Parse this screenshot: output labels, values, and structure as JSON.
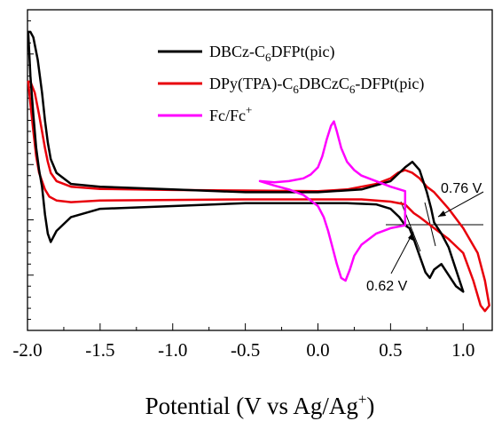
{
  "chart_data": {
    "type": "line",
    "xlabel": "Potential (V vs Ag/Ag",
    "xlabel_sup": "+",
    "xlabel_end": ")",
    "ylabel": "",
    "xlim": [
      -2.0,
      1.2
    ],
    "x_ticks": [
      -2.0,
      -1.5,
      -1.0,
      -0.5,
      0.0,
      0.5,
      1.0
    ],
    "x_tick_labels": [
      "-2.0",
      "-1.5",
      "-1.0",
      "-0.5",
      "0.0",
      "0.5",
      "1.0"
    ],
    "ylim": [
      -2.4,
      3.4
    ],
    "grid": false,
    "legend_position": "top-right",
    "series": [
      {
        "name": "DBCz-C6DFPt(pic)",
        "legend_parts": [
          [
            "DBCz-C",
            "n"
          ],
          [
            "6",
            "sub"
          ],
          [
            "DFPt(pic)",
            "n"
          ]
        ],
        "color": "#000000",
        "x": [
          -1.995,
          -1.98,
          -1.96,
          -1.94,
          -1.92,
          -1.9,
          -1.88,
          -1.86,
          -1.84,
          -1.8,
          -1.7,
          -1.5,
          -1.0,
          -0.5,
          0.0,
          0.2,
          0.4,
          0.5,
          0.56,
          0.6,
          0.63,
          0.66,
          0.7,
          0.74,
          0.77,
          0.8,
          0.85,
          0.9,
          0.95,
          1.0,
          1.0,
          0.95,
          0.9,
          0.85,
          0.8,
          0.78,
          0.75,
          0.7,
          0.65,
          0.6,
          0.5,
          0.3,
          0.0,
          -0.5,
          -1.0,
          -1.5,
          -1.7,
          -1.8,
          -1.84,
          -1.86,
          -1.88,
          -1.9,
          -1.93,
          -1.96,
          -1.98,
          -1.995
        ],
        "y": [
          3.0,
          2.2,
          1.5,
          0.9,
          0.5,
          0.2,
          -0.3,
          -0.65,
          -0.8,
          -0.6,
          -0.35,
          -0.2,
          -0.15,
          -0.1,
          -0.1,
          -0.1,
          -0.12,
          -0.2,
          -0.35,
          -0.5,
          -0.55,
          -0.75,
          -1.05,
          -1.35,
          -1.45,
          -1.3,
          -1.2,
          -1.4,
          -1.6,
          -1.7,
          -1.7,
          -1.3,
          -0.9,
          -0.65,
          -0.45,
          -0.2,
          0.1,
          0.5,
          0.65,
          0.55,
          0.3,
          0.15,
          0.1,
          0.1,
          0.15,
          0.2,
          0.25,
          0.45,
          0.7,
          1.0,
          1.4,
          1.9,
          2.5,
          2.9,
          3.0,
          3.0
        ]
      },
      {
        "name": "DPy(TPA)-C6DBCzC6-DFPt(pic)",
        "legend_parts": [
          [
            "DPy(TPA)-C",
            "n"
          ],
          [
            "6",
            "sub"
          ],
          [
            "DBCzC",
            "n"
          ],
          [
            "6",
            "sub"
          ],
          [
            "-DFPt(pic)",
            "n"
          ]
        ],
        "color": "#e8000b",
        "x": [
          -1.995,
          -1.98,
          -1.96,
          -1.94,
          -1.92,
          -1.9,
          -1.88,
          -1.85,
          -1.8,
          -1.7,
          -1.5,
          -1.0,
          -0.5,
          0.0,
          0.3,
          0.5,
          0.6,
          0.63,
          0.66,
          0.7,
          0.75,
          0.8,
          0.9,
          1.0,
          1.07,
          1.12,
          1.15,
          1.18,
          1.18,
          1.15,
          1.1,
          1.0,
          0.9,
          0.8,
          0.75,
          0.7,
          0.65,
          0.6,
          0.55,
          0.5,
          0.4,
          0.2,
          0.0,
          -0.5,
          -1.0,
          -1.5,
          -1.7,
          -1.8,
          -1.84,
          -1.86,
          -1.88,
          -1.9,
          -1.92,
          -1.95,
          -1.98,
          -1.995
        ],
        "y": [
          2.1,
          1.7,
          1.2,
          0.75,
          0.45,
          0.3,
          0.15,
          0.02,
          -0.05,
          -0.08,
          -0.05,
          -0.04,
          -0.03,
          -0.03,
          -0.03,
          -0.07,
          -0.12,
          -0.2,
          -0.28,
          -0.35,
          -0.45,
          -0.55,
          -0.75,
          -1.0,
          -1.5,
          -1.95,
          -2.05,
          -1.95,
          -1.95,
          -1.5,
          -1.0,
          -0.55,
          -0.2,
          0.1,
          0.2,
          0.35,
          0.45,
          0.5,
          0.45,
          0.35,
          0.25,
          0.15,
          0.12,
          0.13,
          0.14,
          0.16,
          0.2,
          0.3,
          0.45,
          0.65,
          0.9,
          1.2,
          1.5,
          1.9,
          2.1,
          2.1
        ]
      },
      {
        "name": "Fc/Fc",
        "legend_parts": [
          [
            "Fc/Fc",
            "n"
          ],
          [
            "+",
            "sup"
          ]
        ],
        "color": "#ff00ff",
        "x": [
          -0.4,
          -0.3,
          -0.2,
          -0.1,
          -0.05,
          0.0,
          0.03,
          0.06,
          0.09,
          0.11,
          0.13,
          0.16,
          0.2,
          0.25,
          0.3,
          0.4,
          0.5,
          0.6,
          0.6,
          0.5,
          0.4,
          0.3,
          0.25,
          0.22,
          0.19,
          0.16,
          0.13,
          0.1,
          0.07,
          0.04,
          0.0,
          -0.1,
          -0.2,
          -0.3,
          -0.4
        ],
        "y": [
          0.3,
          0.28,
          0.3,
          0.35,
          0.42,
          0.55,
          0.75,
          1.05,
          1.3,
          1.38,
          1.2,
          0.9,
          0.65,
          0.5,
          0.4,
          0.3,
          0.2,
          0.12,
          -0.5,
          -0.55,
          -0.65,
          -0.85,
          -1.05,
          -1.3,
          -1.5,
          -1.45,
          -1.2,
          -0.9,
          -0.6,
          -0.35,
          -0.15,
          0.05,
          0.15,
          0.22,
          0.3
        ]
      }
    ],
    "annotations": [
      {
        "text": "0.76 V"
      },
      {
        "text": "0.62 V"
      }
    ]
  }
}
